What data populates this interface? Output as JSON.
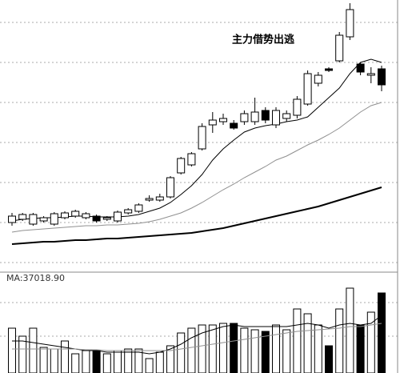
{
  "chart_data": [
    {
      "type": "candlestick",
      "annotation": "主力借势出逃",
      "up_color": "#000000",
      "down_color": "#000000",
      "ylim": [
        0,
        340
      ],
      "open": [
        62,
        66,
        60,
        64,
        60,
        68,
        70,
        68,
        70,
        66,
        64,
        74,
        76,
        90,
        90,
        94,
        124,
        134,
        154,
        184,
        188,
        186,
        188,
        188,
        202,
        184,
        192,
        196,
        210,
        236,
        254,
        264,
        294,
        260,
        246,
        254
      ],
      "close": [
        70,
        72,
        72,
        68,
        73,
        74,
        76,
        73,
        64,
        68,
        75,
        78,
        84,
        92,
        94,
        118,
        142,
        148,
        182,
        190,
        192,
        180,
        198,
        200,
        190,
        202,
        198,
        216,
        248,
        246,
        252,
        296,
        328,
        250,
        248,
        234
      ],
      "high": [
        74,
        74,
        74,
        70,
        75,
        76,
        78,
        75,
        72,
        70,
        77,
        80,
        86,
        96,
        98,
        120,
        144,
        150,
        186,
        200,
        198,
        190,
        202,
        218,
        206,
        206,
        202,
        220,
        252,
        250,
        256,
        300,
        336,
        262,
        256,
        258
      ],
      "low": [
        58,
        64,
        58,
        62,
        58,
        66,
        68,
        66,
        62,
        64,
        62,
        72,
        74,
        88,
        88,
        92,
        122,
        132,
        152,
        174,
        184,
        178,
        184,
        184,
        186,
        180,
        188,
        192,
        208,
        232,
        250,
        262,
        290,
        246,
        236,
        226
      ],
      "series": [
        {
          "color": "#000000",
          "values": [
            64,
            66,
            67,
            68,
            68,
            69,
            70,
            70,
            69,
            69,
            69,
            70,
            72,
            76,
            80,
            87,
            97,
            108,
            122,
            140,
            154,
            165,
            175,
            180,
            183,
            185,
            188,
            190,
            194,
            206,
            218,
            230,
            248,
            262,
            266,
            262
          ]
        },
        {
          "color": "#909090",
          "values": [
            50,
            52,
            53,
            54,
            55,
            56,
            57,
            58,
            58,
            59,
            59,
            60,
            61,
            63,
            66,
            70,
            74,
            80,
            87,
            95,
            103,
            110,
            118,
            125,
            132,
            140,
            145,
            152,
            159,
            165,
            172,
            180,
            190,
            200,
            208,
            212
          ]
        },
        {
          "color": "#000000",
          "width": 2,
          "values": [
            35,
            36,
            37,
            38,
            38,
            39,
            40,
            40,
            41,
            42,
            42,
            43,
            44,
            45,
            46,
            47,
            48,
            49,
            51,
            53,
            55,
            58,
            61,
            64,
            67,
            70,
            73,
            76,
            79,
            82,
            86,
            90,
            94,
            98,
            102,
            106
          ]
        }
      ]
    },
    {
      "type": "bar",
      "title": "MA:37018.90",
      "ylim": [
        0,
        110
      ],
      "up_color": "#000000",
      "down_color": "#000000",
      "values": [
        56,
        46,
        56,
        32,
        30,
        40,
        24,
        28,
        28,
        24,
        28,
        30,
        30,
        18,
        26,
        34,
        50,
        56,
        60,
        60,
        62,
        62,
        56,
        54,
        52,
        60,
        54,
        80,
        74,
        60,
        34,
        80,
        106,
        60,
        76,
        100
      ],
      "down": [
        false,
        false,
        false,
        false,
        false,
        false,
        false,
        false,
        true,
        false,
        false,
        false,
        false,
        false,
        false,
        false,
        false,
        false,
        false,
        false,
        false,
        true,
        false,
        false,
        true,
        false,
        false,
        false,
        false,
        false,
        true,
        false,
        false,
        true,
        false,
        true
      ],
      "series": [
        {
          "color": "#000000",
          "values": [
            40,
            40,
            38,
            36,
            34,
            32,
            30,
            28,
            28,
            26,
            26,
            26,
            26,
            24,
            26,
            30,
            36,
            44,
            50,
            54,
            58,
            60,
            58,
            58,
            58,
            58,
            58,
            60,
            62,
            60,
            56,
            60,
            62,
            60,
            62,
            72
          ]
        },
        {
          "color": "#909090",
          "values": [
            30,
            30,
            30,
            30,
            30,
            30,
            30,
            29,
            29,
            28,
            28,
            28,
            28,
            28,
            28,
            28,
            30,
            32,
            34,
            36,
            38,
            40,
            42,
            44,
            46,
            48,
            50,
            52,
            53,
            54,
            55,
            56,
            58,
            58,
            60,
            62
          ]
        }
      ]
    }
  ]
}
